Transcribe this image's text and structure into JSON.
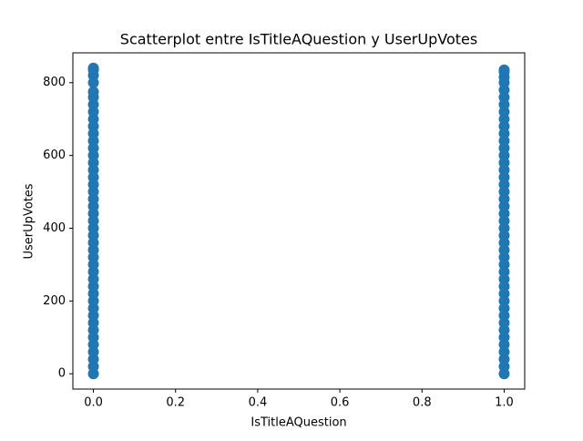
{
  "chart_data": {
    "type": "scatter",
    "title": "Scatterplot entre IsTitleAQuestion y UserUpVotes",
    "x_label": "IsTitleAQuestion",
    "y_label": "UserUpVotes",
    "color": "#1f77b4",
    "xlim": [
      -0.05,
      1.05
    ],
    "ylim": [
      -42,
      882
    ],
    "xticks": [
      {
        "value": 0,
        "label": "0.0"
      },
      {
        "value": 0.2,
        "label": "0.2"
      },
      {
        "value": 0.4,
        "label": "0.4"
      },
      {
        "value": 0.6,
        "label": "0.6"
      },
      {
        "value": 0.8,
        "label": "0.8"
      },
      {
        "value": 1,
        "label": "1.0"
      }
    ],
    "yticks": [
      0,
      200,
      400,
      600,
      800
    ],
    "x": [
      0,
      0,
      0,
      0,
      0,
      0,
      0,
      0,
      0,
      0,
      0,
      0,
      0,
      0,
      0,
      0,
      0,
      0,
      0,
      0,
      0,
      0,
      0,
      0,
      0,
      0,
      0,
      0,
      0,
      0,
      0,
      0,
      0,
      0,
      0,
      0,
      0,
      0,
      0,
      0,
      0,
      0,
      0,
      0,
      1,
      1,
      1,
      1,
      1,
      1,
      1,
      1,
      1,
      1,
      1,
      1,
      1,
      1,
      1,
      1,
      1,
      1,
      1,
      1,
      1,
      1,
      1,
      1,
      1,
      1,
      1,
      1,
      1,
      1,
      1,
      1,
      1,
      1,
      1,
      1,
      1,
      1,
      1,
      1,
      1,
      1,
      1,
      1
    ],
    "values": [
      0,
      20,
      40,
      60,
      80,
      100,
      120,
      140,
      160,
      180,
      200,
      220,
      240,
      260,
      280,
      300,
      320,
      340,
      360,
      380,
      400,
      420,
      440,
      460,
      480,
      500,
      520,
      540,
      560,
      580,
      600,
      620,
      640,
      660,
      680,
      700,
      720,
      740,
      760,
      775,
      800,
      820,
      835,
      840,
      0,
      20,
      40,
      60,
      80,
      100,
      120,
      140,
      160,
      180,
      200,
      220,
      240,
      260,
      280,
      300,
      320,
      340,
      360,
      380,
      400,
      420,
      440,
      460,
      480,
      500,
      520,
      540,
      560,
      580,
      600,
      620,
      640,
      660,
      680,
      700,
      720,
      740,
      760,
      780,
      800,
      815,
      830,
      835
    ]
  }
}
